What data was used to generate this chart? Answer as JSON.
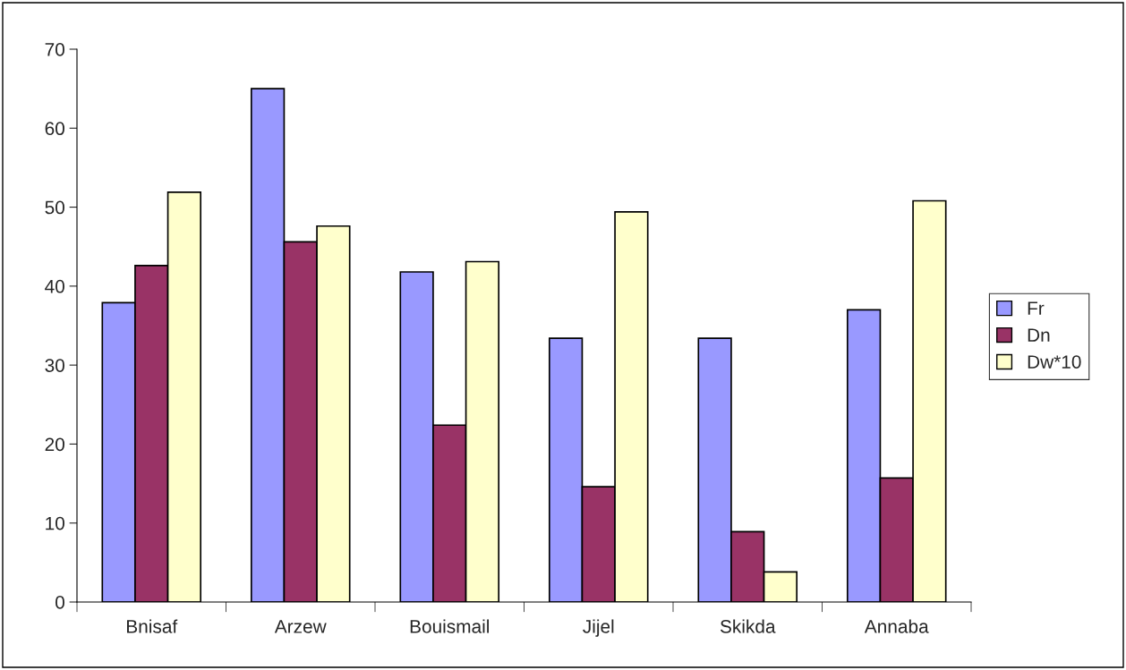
{
  "chart_data": {
    "type": "bar",
    "categories": [
      "Bnisaf",
      "Arzew",
      "Bouismail",
      "Jijel",
      "Skikda",
      "Annaba"
    ],
    "series": [
      {
        "name": "Fr",
        "color": "#9999ff",
        "values": [
          37.9,
          65.0,
          41.8,
          33.4,
          33.4,
          37.0
        ]
      },
      {
        "name": "Dn",
        "color": "#993366",
        "values": [
          42.6,
          45.6,
          22.4,
          14.6,
          8.9,
          15.7
        ]
      },
      {
        "name": "Dw*10",
        "color": "#ffffcc",
        "values": [
          51.9,
          47.6,
          43.1,
          49.4,
          3.8,
          50.8
        ]
      }
    ],
    "ylim": [
      0,
      70
    ],
    "yticks": [
      0,
      10,
      20,
      30,
      40,
      50,
      60,
      70
    ],
    "grid": false,
    "legend": "right"
  }
}
